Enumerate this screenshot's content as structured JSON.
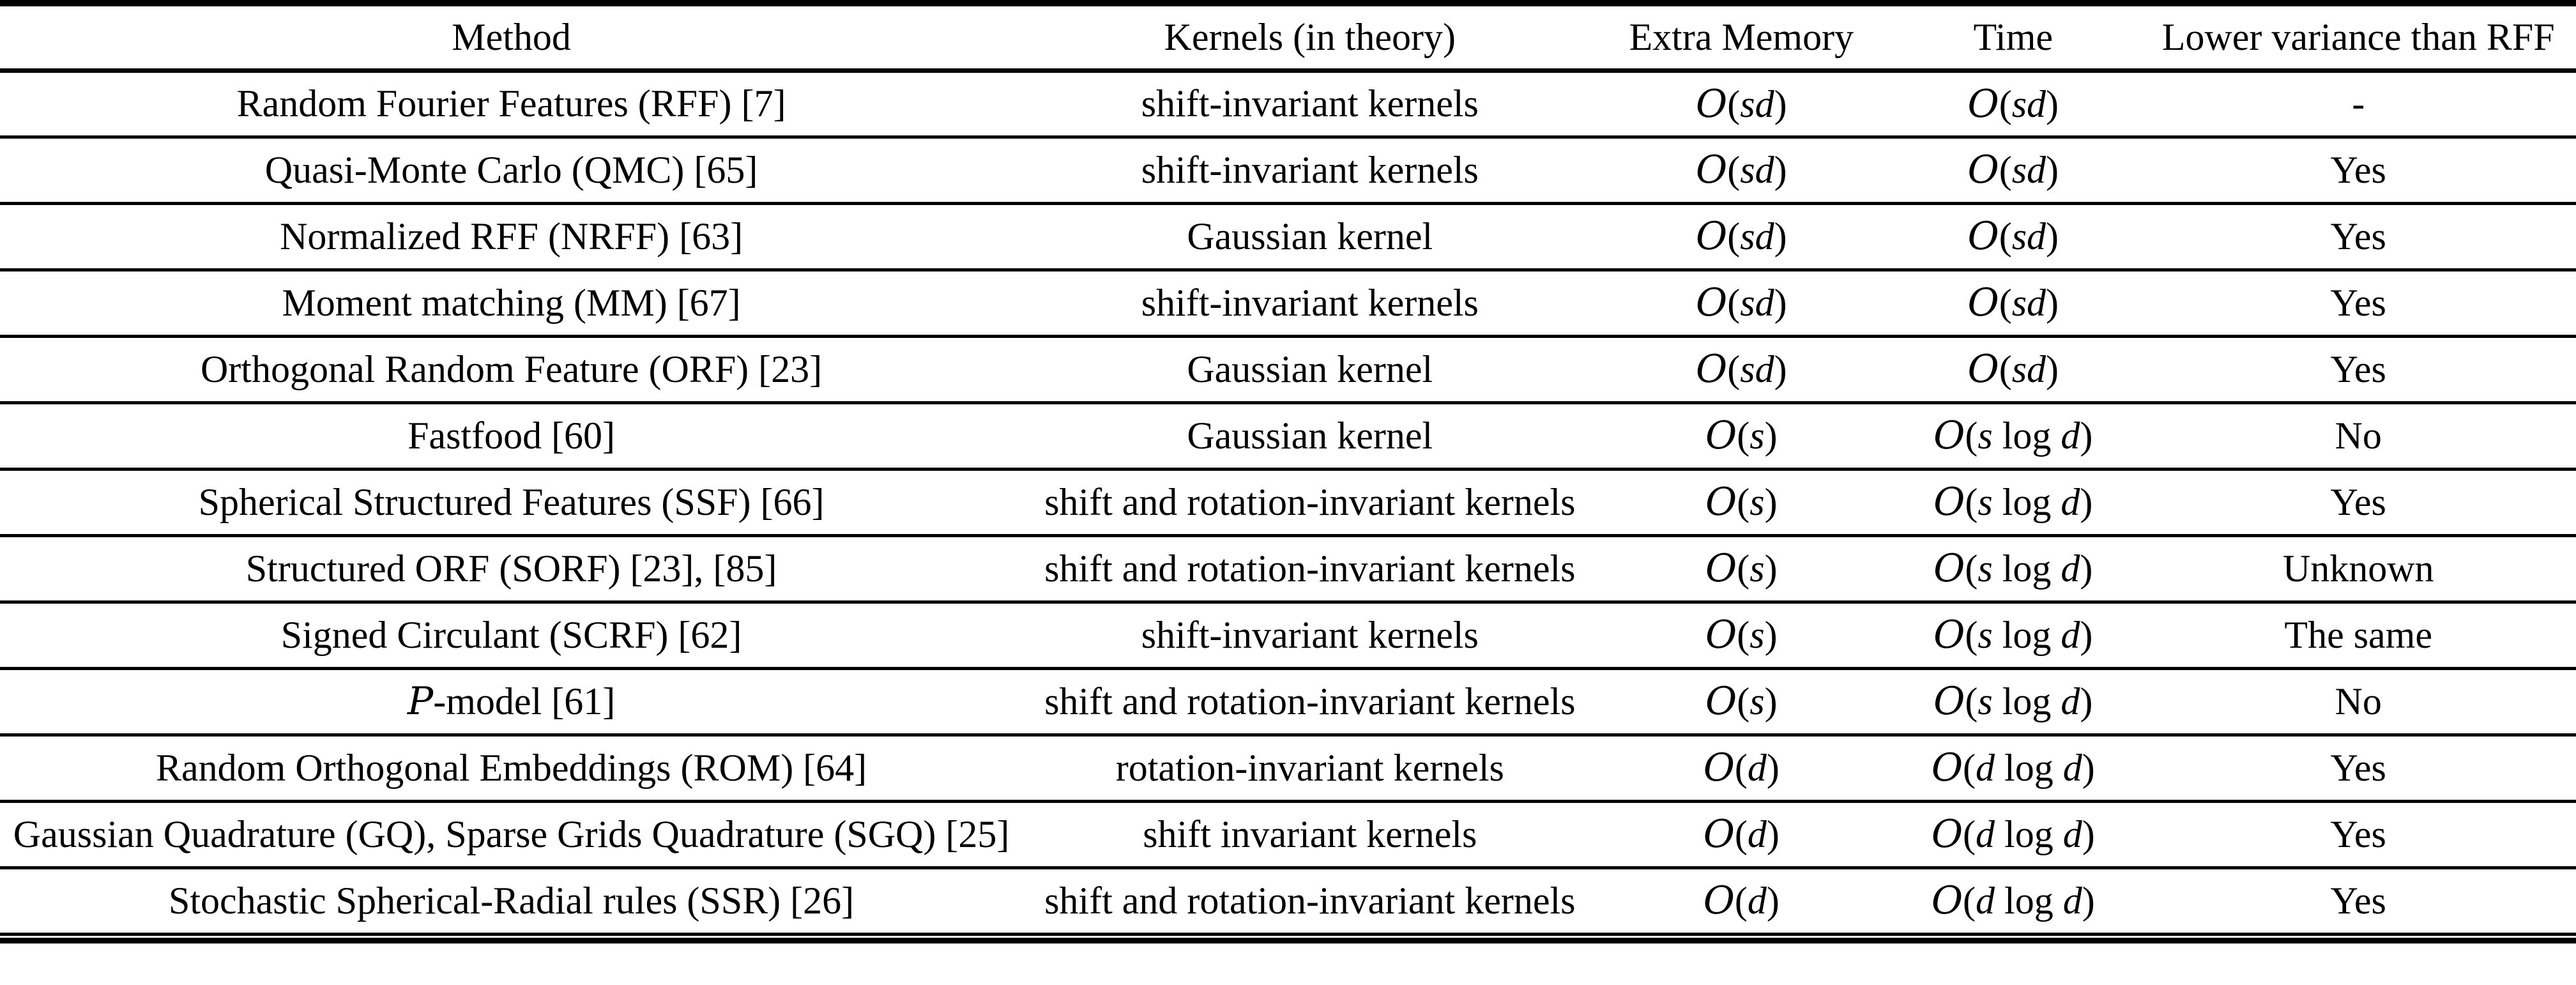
{
  "page": {
    "background_color": "#ffffff",
    "text_color": "#000000",
    "rule_color": "#000000"
  },
  "table": {
    "columns": [
      "Method",
      "Kernels (in theory)",
      "Extra Memory",
      "Time",
      "Lower variance than RFF"
    ],
    "rows": [
      {
        "method": "Random Fourier Features (RFF) [7]",
        "kernels": "shift-invariant kernels",
        "extra_memory": "O(sd)",
        "time": "O(sd)",
        "lower_variance": "-"
      },
      {
        "method": "Quasi-Monte Carlo (QMC) [65]",
        "kernels": "shift-invariant kernels",
        "extra_memory": "O(sd)",
        "time": "O(sd)",
        "lower_variance": "Yes"
      },
      {
        "method": "Normalized RFF (NRFF) [63]",
        "kernels": "Gaussian kernel",
        "extra_memory": "O(sd)",
        "time": "O(sd)",
        "lower_variance": "Yes"
      },
      {
        "method": "Moment matching (MM) [67]",
        "kernels": "shift-invariant kernels",
        "extra_memory": "O(sd)",
        "time": "O(sd)",
        "lower_variance": "Yes"
      },
      {
        "method": "Orthogonal Random Feature (ORF) [23]",
        "kernels": "Gaussian kernel",
        "extra_memory": "O(sd)",
        "time": "O(sd)",
        "lower_variance": "Yes"
      },
      {
        "method": "Fastfood [60]",
        "kernels": "Gaussian kernel",
        "extra_memory": "O(s)",
        "time": "O(s log d)",
        "lower_variance": "No"
      },
      {
        "method": "Spherical Structured Features (SSF) [66]",
        "kernels": "shift and rotation-invariant kernels",
        "extra_memory": "O(s)",
        "time": "O(s log d)",
        "lower_variance": "Yes"
      },
      {
        "method": "Structured ORF (SORF) [23], [85]",
        "kernels": "shift and rotation-invariant kernels",
        "extra_memory": "O(s)",
        "time": "O(s log d)",
        "lower_variance": "Unknown"
      },
      {
        "method": "Signed Circulant (SCRF) [62]",
        "kernels": "shift-invariant kernels",
        "extra_memory": "O(s)",
        "time": "O(s log d)",
        "lower_variance": "The same"
      },
      {
        "method": "P-model [61]",
        "method_first_letter_calligraphic": true,
        "kernels": "shift and rotation-invariant kernels",
        "extra_memory": "O(s)",
        "time": "O(s log d)",
        "lower_variance": "No"
      },
      {
        "method": "Random Orthogonal Embeddings (ROM) [64]",
        "kernels": "rotation-invariant kernels",
        "extra_memory": "O(d)",
        "time": "O(d log d)",
        "lower_variance": "Yes"
      },
      {
        "method": "Gaussian Quadrature (GQ), Sparse Grids Quadrature (SGQ) [25]",
        "kernels": "shift invariant kernels",
        "extra_memory": "O(d)",
        "time": "O(d log d)",
        "lower_variance": "Yes"
      },
      {
        "method": "Stochastic Spherical-Radial rules (SSR) [26]",
        "kernels": "shift and rotation-invariant kernels",
        "extra_memory": "O(d)",
        "time": "O(d log d)",
        "lower_variance": "Yes"
      }
    ]
  }
}
